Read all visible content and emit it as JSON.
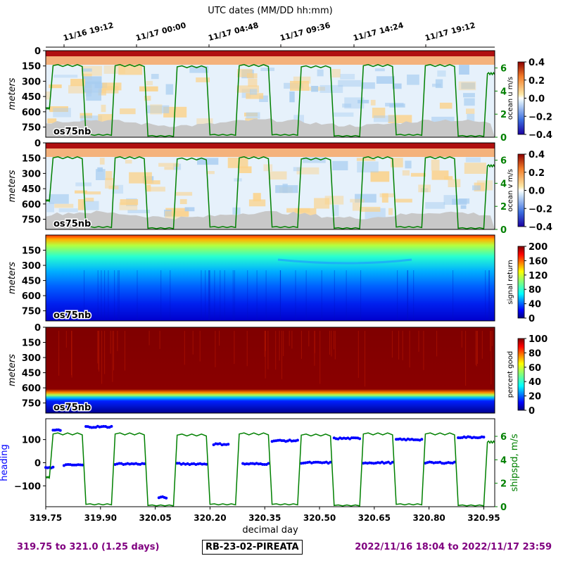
{
  "colors": {
    "speed": "#008000",
    "heading": "#0000ff",
    "footer": "#800080",
    "bottom_mask": "#c8c8c8"
  },
  "top_axis": {
    "title": "UTC dates (MM/DD hh:mm)",
    "ticks": [
      "11/16 19:12",
      "11/17 00:00",
      "11/17 04:48",
      "11/17 09:36",
      "11/17 14:24",
      "11/17 19:12"
    ]
  },
  "footer": {
    "left": "319.75 to 321.0 (1.25 days)",
    "center": "RB-23-02-PIREATA",
    "right": "2022/11/16 18:04 to 2022/11/17 23:59"
  },
  "chart_data": [
    {
      "type": "heatmap",
      "panel": "ocean_u",
      "ylabel": "meters",
      "y_ticks": [
        "0",
        "150",
        "300",
        "450",
        "600",
        "750"
      ],
      "instrument_label": "os75nb",
      "colorbar_label": "ocean u m/s",
      "colorbar_ticks": [
        "0.4",
        "0.2",
        "0.0",
        "−0.2",
        "−0.4"
      ],
      "right_axis_ticks": [
        "6",
        "4",
        "2",
        "0"
      ],
      "zlim": [
        -0.4,
        0.4
      ]
    },
    {
      "type": "heatmap",
      "panel": "ocean_v",
      "ylabel": "meters",
      "y_ticks": [
        "0",
        "150",
        "300",
        "450",
        "600",
        "750"
      ],
      "instrument_label": "os75nb",
      "colorbar_label": "ocean v m/s",
      "colorbar_ticks": [
        "0.4",
        "0.2",
        "0.0",
        "−0.2",
        "−0.4"
      ],
      "right_axis_ticks": [
        "6",
        "4",
        "2",
        "0"
      ],
      "zlim": [
        -0.4,
        0.4
      ]
    },
    {
      "type": "heatmap",
      "panel": "signal_return",
      "ylabel": "meters",
      "y_ticks": [
        "150",
        "300",
        "450",
        "600",
        "750"
      ],
      "instrument_label": "os75nb",
      "colorbar_label": "signal return",
      "colorbar_ticks": [
        "200",
        "160",
        "120",
        "80",
        "40",
        "0"
      ],
      "zlim": [
        0,
        200
      ]
    },
    {
      "type": "heatmap",
      "panel": "percent_good",
      "ylabel": "meters",
      "y_ticks": [
        "0",
        "150",
        "300",
        "450",
        "600",
        "750"
      ],
      "instrument_label": "os75nb",
      "colorbar_label": "percent good",
      "colorbar_ticks": [
        "100",
        "80",
        "60",
        "40",
        "20",
        "0"
      ],
      "zlim": [
        0,
        100
      ]
    },
    {
      "type": "line",
      "panel": "heading_speed",
      "xlabel": "decimal day",
      "x_ticks": [
        "319.75",
        "319.90",
        "320.05",
        "320.20",
        "320.35",
        "320.50",
        "320.65",
        "320.80",
        "320.95"
      ],
      "xlim": [
        319.75,
        320.98
      ],
      "left_axis": {
        "label": "heading",
        "ticks": [
          "100",
          "0",
          "−100"
        ],
        "ylim": [
          -190,
          190
        ]
      },
      "right_axis": {
        "label": "shipspd, m/s",
        "ticks": [
          "6",
          "4",
          "2",
          "0"
        ],
        "ylim": [
          0,
          7.5
        ]
      },
      "speed_segments": [
        {
          "x_start": 319.75,
          "x_end": 319.76,
          "value": 2.5
        },
        {
          "x_start": 319.77,
          "x_end": 319.85,
          "value": 6.2
        },
        {
          "x_start": 319.86,
          "x_end": 319.93,
          "value": 0.2
        },
        {
          "x_start": 319.94,
          "x_end": 320.02,
          "value": 6.2
        },
        {
          "x_start": 320.03,
          "x_end": 320.1,
          "value": 0.1
        },
        {
          "x_start": 320.11,
          "x_end": 320.19,
          "value": 6.1
        },
        {
          "x_start": 320.2,
          "x_end": 320.27,
          "value": 0.2
        },
        {
          "x_start": 320.28,
          "x_end": 320.36,
          "value": 6.2
        },
        {
          "x_start": 320.37,
          "x_end": 320.44,
          "value": 0.2
        },
        {
          "x_start": 320.45,
          "x_end": 320.53,
          "value": 6.1
        },
        {
          "x_start": 320.54,
          "x_end": 320.61,
          "value": 0.1
        },
        {
          "x_start": 320.62,
          "x_end": 320.7,
          "value": 6.2
        },
        {
          "x_start": 320.71,
          "x_end": 320.78,
          "value": 0.2
        },
        {
          "x_start": 320.79,
          "x_end": 320.87,
          "value": 6.2
        },
        {
          "x_start": 320.88,
          "x_end": 320.95,
          "value": 0.1
        },
        {
          "x_start": 320.96,
          "x_end": 320.98,
          "value": 5.5
        }
      ],
      "heading_clusters": [
        {
          "x_start": 319.75,
          "x_end": 319.77,
          "value": -20
        },
        {
          "x_start": 319.77,
          "x_end": 319.79,
          "value": 140
        },
        {
          "x_start": 319.8,
          "x_end": 319.85,
          "value": -10
        },
        {
          "x_start": 319.86,
          "x_end": 319.93,
          "value": 155
        },
        {
          "x_start": 319.94,
          "x_end": 320.02,
          "value": -5
        },
        {
          "x_start": 320.06,
          "x_end": 320.08,
          "value": -150
        },
        {
          "x_start": 320.11,
          "x_end": 320.19,
          "value": -5
        },
        {
          "x_start": 320.21,
          "x_end": 320.25,
          "value": 80
        },
        {
          "x_start": 320.29,
          "x_end": 320.36,
          "value": -5
        },
        {
          "x_start": 320.37,
          "x_end": 320.44,
          "value": 95
        },
        {
          "x_start": 320.45,
          "x_end": 320.53,
          "value": 0
        },
        {
          "x_start": 320.54,
          "x_end": 320.61,
          "value": 105
        },
        {
          "x_start": 320.62,
          "x_end": 320.7,
          "value": 0
        },
        {
          "x_start": 320.71,
          "x_end": 320.78,
          "value": 100
        },
        {
          "x_start": 320.79,
          "x_end": 320.87,
          "value": 0
        },
        {
          "x_start": 320.88,
          "x_end": 320.95,
          "value": 110
        }
      ]
    }
  ]
}
